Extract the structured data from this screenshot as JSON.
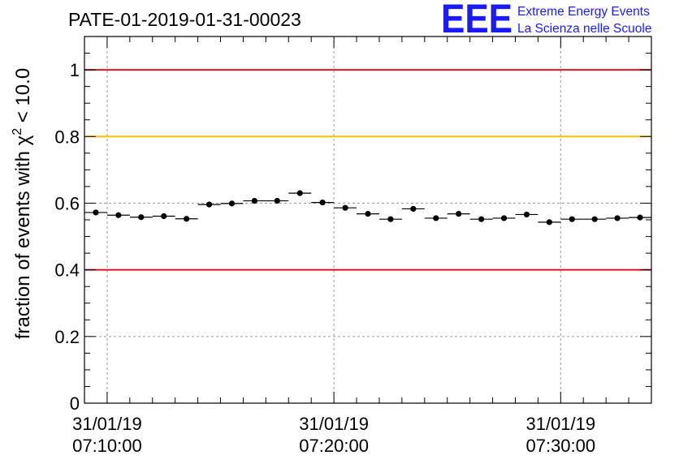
{
  "header": {
    "run_title": "PATE-01-2019-01-31-00023",
    "logo_mark": "EEE",
    "logo_line1": "Extreme Energy Events",
    "logo_line2": "La Scienza nelle Scuole"
  },
  "colors": {
    "threshold_red": "#e0141e",
    "threshold_yellow": "#ffc000",
    "marker": "#000000",
    "grid": "#9a9a9a",
    "logo": "#1a1aff"
  },
  "chart_data": {
    "type": "scatter",
    "title": "PATE-01-2019-01-31-00023",
    "ylabel_prefix": "fraction of events with χ",
    "ylabel_sup": "2",
    "ylabel_suffix": " < 10.0",
    "xlabel": "",
    "ylim": [
      0,
      1.1
    ],
    "xlim_minutes": [
      -1.0,
      24.0
    ],
    "y_ticks": [
      {
        "value": 0,
        "label": "0"
      },
      {
        "value": 0.2,
        "label": "0.2"
      },
      {
        "value": 0.4,
        "label": "0.4"
      },
      {
        "value": 0.6,
        "label": "0.6"
      },
      {
        "value": 0.8,
        "label": "0.8"
      },
      {
        "value": 1.0,
        "label": "1"
      }
    ],
    "x_ticks": [
      {
        "minute": 0,
        "date": "31/01/19",
        "time": "07:10:00"
      },
      {
        "minute": 10,
        "date": "31/01/19",
        "time": "07:20:00"
      },
      {
        "minute": 20,
        "date": "31/01/19",
        "time": "07:30:00"
      }
    ],
    "reference_lines": [
      {
        "y": 1.0,
        "color": "red"
      },
      {
        "y": 0.8,
        "color": "yellow"
      },
      {
        "y": 0.4,
        "color": "red"
      }
    ],
    "bin_width_minutes": 1.0,
    "grid": true,
    "series": [
      {
        "name": "fraction of events with chi2 < 10.0",
        "x_minutes": [
          -0.5,
          0.5,
          1.5,
          2.5,
          3.5,
          4.5,
          5.5,
          6.5,
          7.5,
          8.5,
          9.5,
          10.5,
          11.5,
          12.5,
          13.5,
          14.5,
          15.5,
          16.5,
          17.5,
          18.5,
          19.5,
          20.5,
          21.5,
          22.5,
          23.5
        ],
        "y": [
          0.572,
          0.564,
          0.558,
          0.561,
          0.553,
          0.596,
          0.599,
          0.607,
          0.607,
          0.63,
          0.602,
          0.586,
          0.568,
          0.552,
          0.583,
          0.555,
          0.568,
          0.552,
          0.555,
          0.566,
          0.543,
          0.552,
          0.552,
          0.555,
          0.557
        ],
        "yerr": [
          0.008,
          0.008,
          0.008,
          0.008,
          0.008,
          0.008,
          0.008,
          0.008,
          0.008,
          0.008,
          0.008,
          0.008,
          0.008,
          0.008,
          0.008,
          0.008,
          0.008,
          0.008,
          0.008,
          0.008,
          0.008,
          0.008,
          0.008,
          0.008,
          0.008
        ]
      }
    ]
  }
}
